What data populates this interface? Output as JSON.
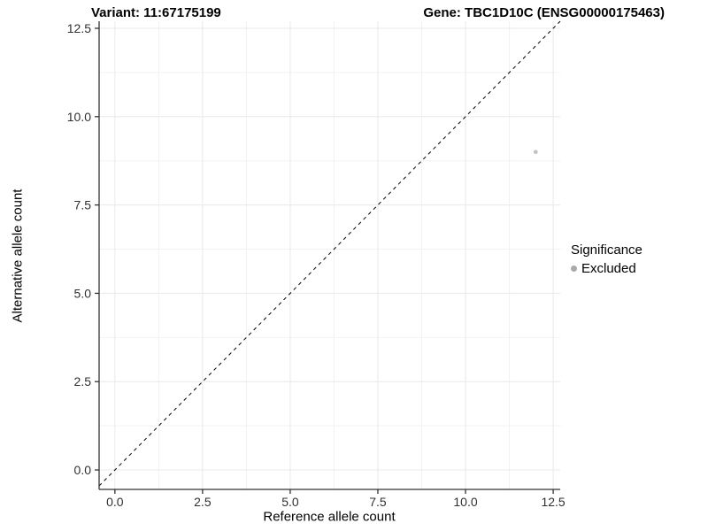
{
  "chart_data": {
    "type": "scatter",
    "titles": {
      "left": "Variant: 11:67175199",
      "right": "Gene: TBC1D10C (ENSG00000175463)"
    },
    "xlabel": "Reference allele count",
    "ylabel": "Alternative allele count",
    "x_ticks": {
      "values": [
        0,
        2.5,
        5,
        7.5,
        10,
        12.5
      ],
      "labels": [
        "0.0",
        "2.5",
        "5.0",
        "7.5",
        "10.0",
        "12.5"
      ]
    },
    "y_ticks": {
      "values": [
        0,
        2.5,
        5,
        7.5,
        10,
        12.5
      ],
      "labels": [
        "0.0",
        "2.5",
        "5.0",
        "7.5",
        "10.0",
        "12.5"
      ]
    },
    "xlim": [
      -0.45,
      12.7
    ],
    "ylim": [
      -0.55,
      12.7
    ],
    "grid": {
      "major": true,
      "minor": true,
      "minor_step": 1.25
    },
    "identity_line": {
      "slope": 1,
      "intercept": 0,
      "style": "dashed",
      "color": "#000000"
    },
    "points": [
      {
        "x": 12,
        "y": 9,
        "significance": "Excluded"
      }
    ],
    "legend": {
      "title": "Significance",
      "position": "right",
      "items": [
        {
          "label": "Excluded",
          "color": "#a9a9a9"
        }
      ]
    },
    "colors": {
      "point": "#c3c3c3",
      "grid_major": "#e8e8e8",
      "grid_minor": "#f2f2f2",
      "axis_line": "#333333",
      "tick_mark": "#333333",
      "tick_text": "#303030",
      "background": "#ffffff"
    }
  }
}
